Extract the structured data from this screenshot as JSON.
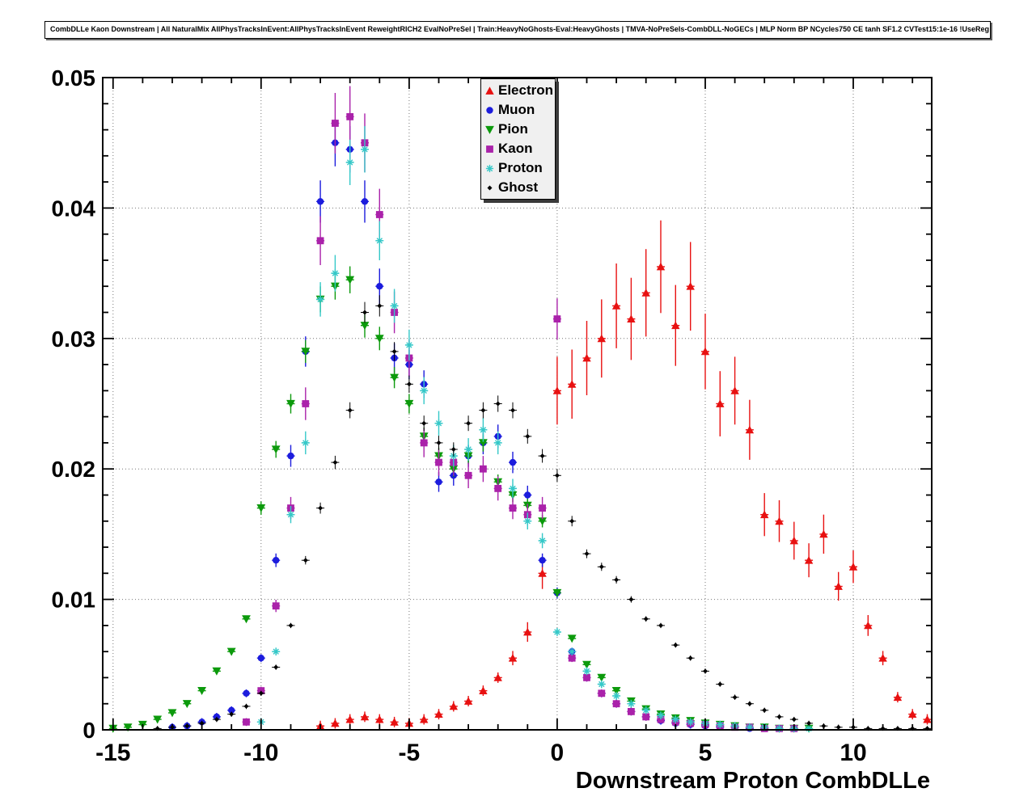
{
  "chart_data": {
    "type": "scatter",
    "title": "CombDLLe Kaon Downstream | All NaturalMix AllPhysTracksInEvent:AllPhysTracksInEvent ReweightRICH2 EvalNoPreSel | Train:HeavyNoGhosts-Eval:HeavyGhosts | TMVA-NoPreSels-CombDLL-NoGECs | MLP Norm BP NCycles750 CE tanh SF1.2 CVTest15:1e-16 !UseReg",
    "xlabel": "Downstream Proton CombDLLe",
    "ylabel": "",
    "xlim": [
      -15.35,
      12.65
    ],
    "ylim": [
      0,
      0.05
    ],
    "x_ticks": [
      -15,
      -10,
      -5,
      0,
      5,
      10
    ],
    "x_tick_labels": [
      "-15",
      "-10",
      "-5",
      "0",
      "5",
      "10"
    ],
    "y_ticks": [
      0,
      0.01,
      0.02,
      0.03,
      0.04,
      0.05
    ],
    "y_tick_labels": [
      "0",
      "0.01",
      "0.02",
      "0.03",
      "0.04",
      "0.05"
    ],
    "grid": "dotted",
    "legend_position": "top-center",
    "x": [
      -15,
      -14.5,
      -14,
      -13.5,
      -13,
      -12.5,
      -12,
      -11.5,
      -11,
      -10.5,
      -10,
      -9.5,
      -9,
      -8.5,
      -8,
      -7.5,
      -7,
      -6.5,
      -6,
      -5.5,
      -5,
      -4.5,
      -4,
      -3.5,
      -3,
      -2.5,
      -2,
      -1.5,
      -1,
      -0.5,
      0,
      0.5,
      1,
      1.5,
      2,
      2.5,
      3,
      3.5,
      4,
      4.5,
      5,
      5.5,
      6,
      6.5,
      7,
      7.5,
      8,
      8.5,
      9,
      9.5,
      10,
      10.5,
      11,
      11.5,
      12,
      12.5
    ],
    "series": [
      {
        "name": "Electron",
        "color": "#e81111",
        "marker": "triangle-up",
        "error_frac": 0.1,
        "error_min": 0.0004,
        "values": [
          null,
          null,
          null,
          null,
          null,
          null,
          null,
          null,
          null,
          null,
          null,
          null,
          null,
          null,
          0.0003,
          0.0005,
          0.0008,
          0.001,
          0.0008,
          0.0006,
          0.0005,
          0.0008,
          0.0012,
          0.0018,
          0.0022,
          0.003,
          0.004,
          0.0055,
          0.0075,
          0.012,
          0.026,
          0.0265,
          0.0285,
          0.03,
          0.0325,
          0.0315,
          0.0335,
          0.0355,
          0.031,
          0.034,
          0.029,
          0.025,
          0.026,
          0.023,
          0.0165,
          0.016,
          0.0145,
          0.013,
          0.015,
          0.011,
          0.0125,
          0.008,
          0.0055,
          0.0025,
          0.0012,
          0.0008
        ]
      },
      {
        "name": "Muon",
        "color": "#1c1cdd",
        "marker": "circle",
        "error_frac": 0.04,
        "error_min": 0.0003,
        "values": [
          null,
          null,
          null,
          null,
          0.0002,
          0.0003,
          0.0006,
          0.001,
          0.0015,
          0.0028,
          0.0055,
          0.013,
          0.021,
          0.029,
          0.0405,
          0.045,
          0.0445,
          0.0405,
          0.034,
          0.0285,
          0.028,
          0.0265,
          0.019,
          0.0195,
          0.021,
          0.022,
          0.0225,
          0.0205,
          0.018,
          0.013,
          0.0105,
          0.006,
          0.004,
          0.0028,
          0.002,
          0.0014,
          0.001,
          0.0007,
          0.0005,
          0.0004,
          0.0003,
          0.0002,
          0.0002,
          0.0001,
          0.0001,
          0.0001,
          0.0001,
          null,
          null,
          null,
          null,
          null,
          null,
          null,
          null,
          null
        ]
      },
      {
        "name": "Pion",
        "color": "#0c9a0c",
        "marker": "triangle-down",
        "error_frac": 0.03,
        "error_min": 0.0002,
        "values": [
          0.0001,
          0.0002,
          0.0004,
          0.0008,
          0.0013,
          0.002,
          0.003,
          0.0045,
          0.006,
          0.0085,
          0.017,
          0.0215,
          0.025,
          0.029,
          0.033,
          0.034,
          0.0345,
          0.031,
          0.03,
          0.027,
          0.025,
          0.0225,
          0.021,
          0.02,
          0.021,
          0.022,
          0.019,
          0.018,
          0.0172,
          0.016,
          0.0105,
          0.007,
          0.005,
          0.004,
          0.003,
          0.0022,
          0.0016,
          0.0012,
          0.0009,
          0.0007,
          0.0005,
          0.0004,
          0.0003,
          0.0002,
          0.0002,
          0.0001,
          0.0001,
          0.0001,
          null,
          null,
          null,
          null,
          null,
          null,
          null,
          null
        ]
      },
      {
        "name": "Kaon",
        "color": "#aa22aa",
        "marker": "square",
        "error_frac": 0.05,
        "error_min": 0.0003,
        "values": [
          null,
          null,
          null,
          null,
          null,
          null,
          null,
          null,
          null,
          0.0006,
          0.003,
          0.0095,
          0.017,
          0.025,
          0.0375,
          0.0465,
          0.047,
          0.045,
          0.0395,
          0.032,
          0.0285,
          0.022,
          0.0205,
          0.0205,
          0.0195,
          0.02,
          0.0185,
          0.017,
          0.0165,
          0.017,
          0.0315,
          0.0055,
          0.004,
          0.0028,
          0.002,
          0.0014,
          0.001,
          0.0008,
          0.0006,
          0.0005,
          0.0004,
          0.0003,
          0.0002,
          0.0002,
          0.0001,
          0.0001,
          0.0001,
          null,
          null,
          null,
          null,
          null,
          null,
          null,
          null,
          null
        ]
      },
      {
        "name": "Proton",
        "color": "#35c8c8",
        "marker": "star",
        "error_frac": 0.04,
        "error_min": 0.0003,
        "values": [
          null,
          null,
          null,
          null,
          null,
          null,
          null,
          null,
          null,
          null,
          0.0006,
          0.006,
          0.0165,
          0.022,
          0.033,
          0.035,
          0.0435,
          0.0445,
          0.0375,
          0.0325,
          0.0295,
          0.026,
          0.0235,
          0.021,
          0.0215,
          0.023,
          0.022,
          0.0185,
          0.016,
          0.0145,
          0.0075,
          0.006,
          0.0045,
          0.0035,
          0.0026,
          0.002,
          0.0015,
          0.0011,
          0.0008,
          0.0006,
          0.0005,
          0.0004,
          0.0003,
          0.0002,
          0.0002,
          0.0001,
          0.0001,
          0.0001,
          null,
          null,
          null,
          null,
          null,
          null,
          null,
          null
        ]
      },
      {
        "name": "Ghost",
        "color": "#000000",
        "marker": "diamond",
        "error_frac": 0.025,
        "error_min": 0.0002,
        "values": [
          null,
          null,
          null,
          0.0001,
          0.0002,
          0.0003,
          0.0005,
          0.0008,
          0.0012,
          0.0018,
          0.0028,
          0.0048,
          0.008,
          0.013,
          0.017,
          0.0205,
          0.0245,
          0.032,
          0.0325,
          0.029,
          0.0265,
          0.0235,
          0.022,
          0.0215,
          0.0235,
          0.0245,
          0.025,
          0.0245,
          0.0225,
          0.021,
          0.0195,
          0.016,
          0.0135,
          0.0125,
          0.0115,
          0.01,
          0.0085,
          0.008,
          0.0065,
          0.0055,
          0.0045,
          0.0035,
          0.0025,
          0.002,
          0.0015,
          0.001,
          0.0008,
          0.0005,
          0.0003,
          0.0002,
          0.0002,
          0.0001,
          0.0001,
          0.0001,
          0.0001,
          0.0001
        ]
      }
    ]
  }
}
